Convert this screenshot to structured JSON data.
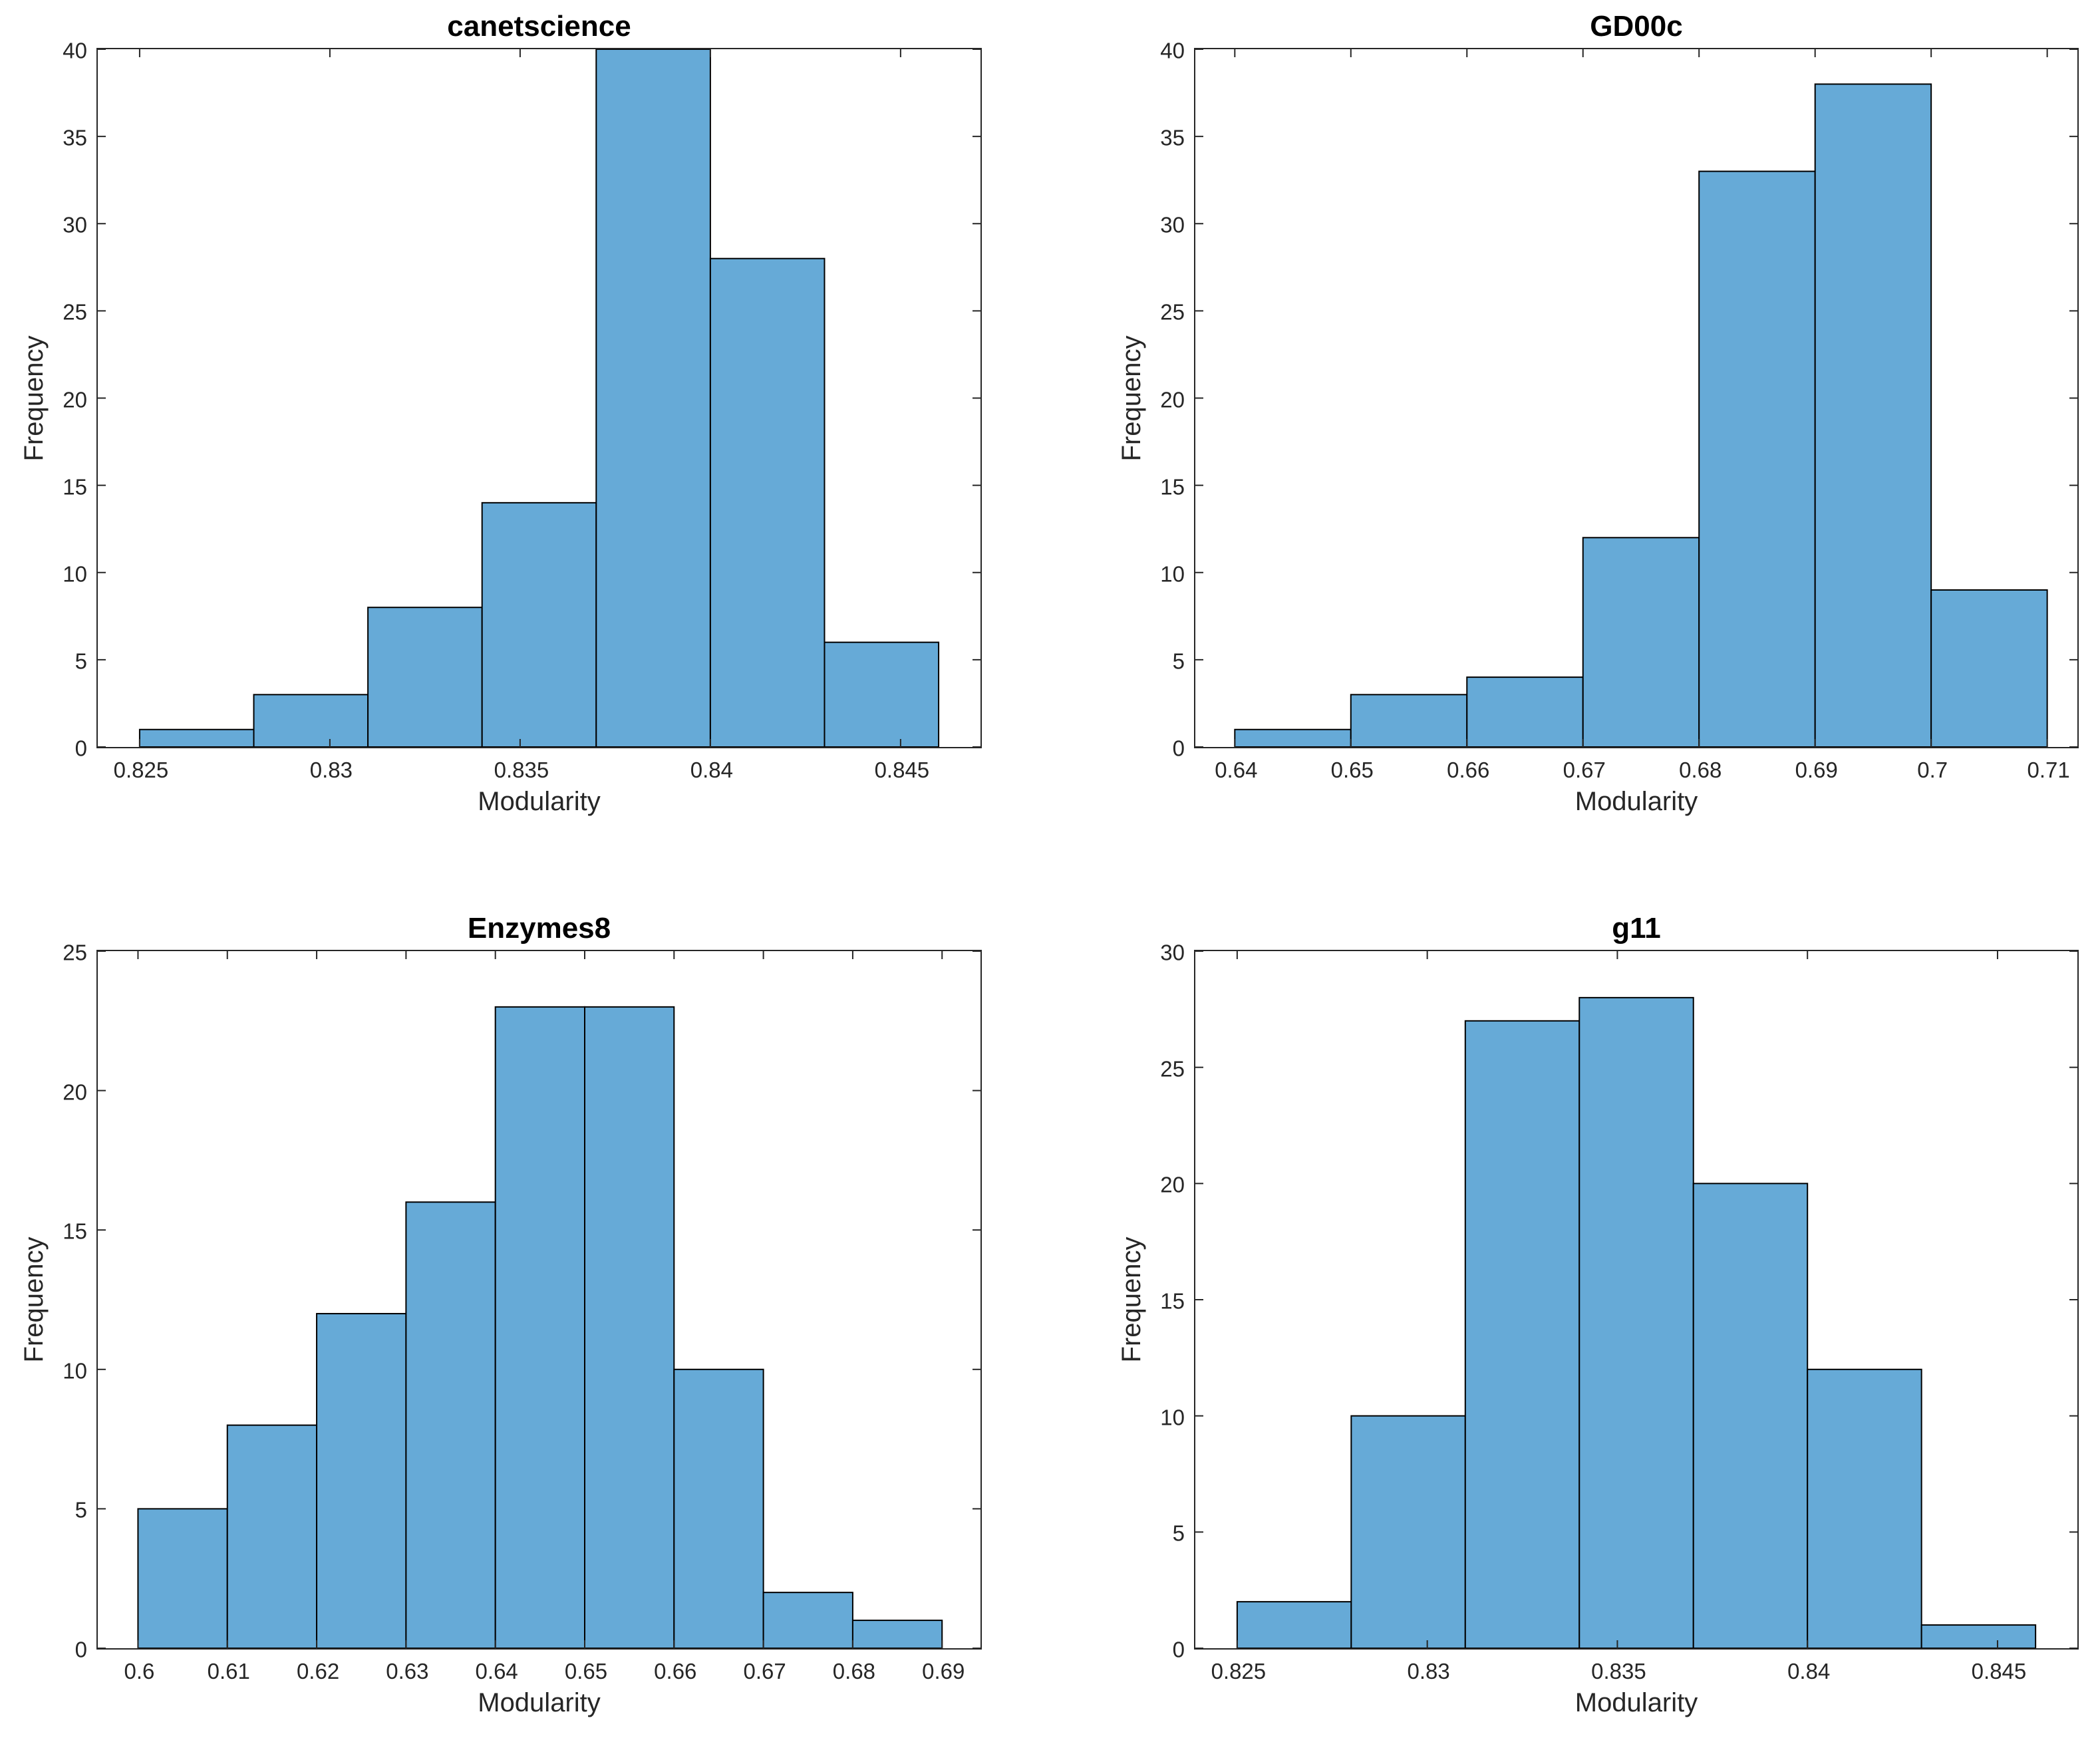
{
  "figure": {
    "background": "#ffffff"
  },
  "style": {
    "bar_fill": "#66AAD7",
    "bar_edge": "#000000",
    "axis_color": "#262626",
    "tick_text_color": "#262626",
    "title_color": "#000000"
  },
  "chart_data": [
    {
      "type": "bar",
      "subtype": "histogram",
      "title": "canetscience",
      "xlabel": "Modularity",
      "ylabel": "Frequency",
      "bin_start": 0.825,
      "bin_width": 0.003,
      "values": [
        1,
        3,
        8,
        14,
        40,
        28,
        6
      ],
      "xlim": [
        0.8239,
        0.8471
      ],
      "ylim": [
        0,
        40
      ],
      "xtick_values": [
        0.825,
        0.83,
        0.835,
        0.84,
        0.845
      ],
      "xtick_labels": [
        "0.825",
        "0.83",
        "0.835",
        "0.84",
        "0.845"
      ],
      "ytick_values": [
        0,
        5,
        10,
        15,
        20,
        25,
        30,
        35,
        40
      ],
      "ytick_labels": [
        "0",
        "5",
        "10",
        "15",
        "20",
        "25",
        "30",
        "35",
        "40"
      ],
      "grid": false,
      "legend": null
    },
    {
      "type": "bar",
      "subtype": "histogram",
      "title": "GD00c",
      "xlabel": "Modularity",
      "ylabel": "Frequency",
      "bin_start": 0.64,
      "bin_width": 0.01,
      "values": [
        1,
        3,
        4,
        12,
        33,
        38,
        9
      ],
      "xlim": [
        0.6366,
        0.7126
      ],
      "ylim": [
        0,
        40
      ],
      "xtick_values": [
        0.64,
        0.65,
        0.66,
        0.67,
        0.68,
        0.69,
        0.7,
        0.71
      ],
      "xtick_labels": [
        "0.64",
        "0.65",
        "0.66",
        "0.67",
        "0.68",
        "0.69",
        "0.7",
        "0.71"
      ],
      "ytick_values": [
        0,
        5,
        10,
        15,
        20,
        25,
        30,
        35,
        40
      ],
      "ytick_labels": [
        "0",
        "5",
        "10",
        "15",
        "20",
        "25",
        "30",
        "35",
        "40"
      ],
      "grid": false,
      "legend": null
    },
    {
      "type": "bar",
      "subtype": "histogram",
      "title": "Enzymes8",
      "xlabel": "Modularity",
      "ylabel": "Frequency",
      "bin_start": 0.6,
      "bin_width": 0.01,
      "values": [
        5,
        8,
        12,
        16,
        23,
        23,
        10,
        2,
        1
      ],
      "xlim": [
        0.5955,
        0.6943
      ],
      "ylim": [
        0,
        25
      ],
      "xtick_values": [
        0.6,
        0.61,
        0.62,
        0.63,
        0.64,
        0.65,
        0.66,
        0.67,
        0.68,
        0.69
      ],
      "xtick_labels": [
        "0.6",
        "0.61",
        "0.62",
        "0.63",
        "0.64",
        "0.65",
        "0.66",
        "0.67",
        "0.68",
        "0.69"
      ],
      "ytick_values": [
        0,
        5,
        10,
        15,
        20,
        25
      ],
      "ytick_labels": [
        "0",
        "5",
        "10",
        "15",
        "20",
        "25"
      ],
      "grid": false,
      "legend": null
    },
    {
      "type": "bar",
      "subtype": "histogram",
      "title": "g11",
      "xlabel": "Modularity",
      "ylabel": "Frequency",
      "bin_start": 0.825,
      "bin_width": 0.003,
      "values": [
        2,
        10,
        27,
        28,
        20,
        12,
        1
      ],
      "xlim": [
        0.8239,
        0.8471
      ],
      "ylim": [
        0,
        30
      ],
      "xtick_values": [
        0.825,
        0.83,
        0.835,
        0.84,
        0.845
      ],
      "xtick_labels": [
        "0.825",
        "0.83",
        "0.835",
        "0.84",
        "0.845"
      ],
      "ytick_values": [
        0,
        5,
        10,
        15,
        20,
        25,
        30
      ],
      "ytick_labels": [
        "0",
        "5",
        "10",
        "15",
        "20",
        "25",
        "30"
      ],
      "grid": false,
      "legend": null
    }
  ]
}
